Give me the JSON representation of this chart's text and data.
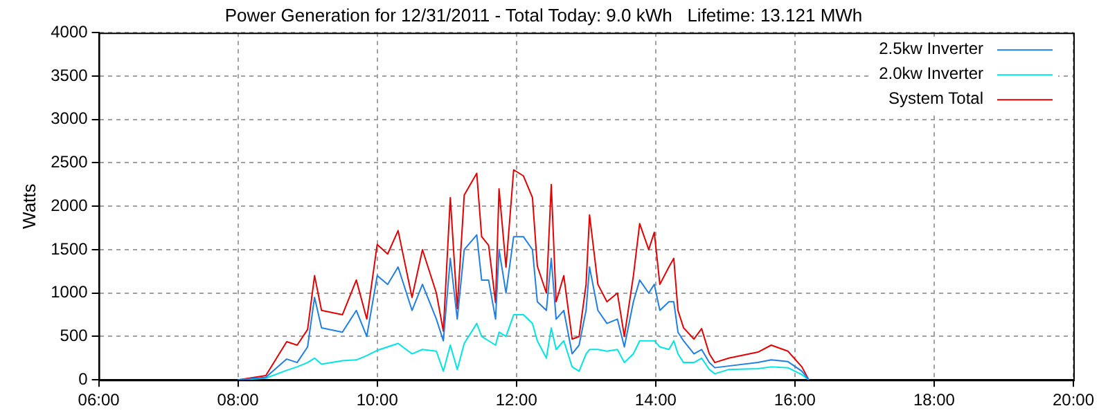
{
  "chart_data": {
    "type": "line",
    "title": "Power Generation for 12/31/2011 - Total Today: 9.0 kWh   Lifetime: 13.121 MWh",
    "ylabel": "Watts",
    "x": [
      8.0,
      8.4,
      8.7,
      8.85,
      9.0,
      9.1,
      9.2,
      9.5,
      9.7,
      9.85,
      10.0,
      10.15,
      10.3,
      10.5,
      10.65,
      10.85,
      10.95,
      11.05,
      11.15,
      11.25,
      11.43,
      11.5,
      11.6,
      11.7,
      11.75,
      11.85,
      11.96,
      12.1,
      12.23,
      12.3,
      12.43,
      12.5,
      12.57,
      12.68,
      12.8,
      12.9,
      13.0,
      13.05,
      13.17,
      13.3,
      13.45,
      13.55,
      13.68,
      13.77,
      13.9,
      13.98,
      14.06,
      14.19,
      14.26,
      14.32,
      14.4,
      14.55,
      14.66,
      14.77,
      14.85,
      15.05,
      15.47,
      15.66,
      15.9,
      16.1,
      16.2
    ],
    "series": [
      {
        "name": "2.5kw Inverter",
        "color": "#1e7fe6",
        "values": [
          0,
          30,
          240,
          200,
          380,
          950,
          600,
          550,
          800,
          500,
          1200,
          1100,
          1300,
          800,
          1100,
          700,
          450,
          1400,
          700,
          1500,
          1670,
          1150,
          1150,
          700,
          1500,
          1000,
          1650,
          1650,
          1500,
          900,
          800,
          1400,
          700,
          800,
          300,
          400,
          800,
          1300,
          800,
          650,
          700,
          380,
          900,
          1150,
          1000,
          1100,
          800,
          900,
          900,
          550,
          450,
          300,
          350,
          200,
          140,
          160,
          200,
          230,
          210,
          100,
          0
        ]
      },
      {
        "name": "2.0kw Inverter",
        "color": "#00e5e5",
        "values": [
          0,
          20,
          110,
          150,
          200,
          250,
          180,
          220,
          230,
          280,
          340,
          380,
          420,
          300,
          350,
          330,
          100,
          400,
          120,
          420,
          650,
          500,
          450,
          400,
          550,
          500,
          750,
          750,
          650,
          450,
          250,
          600,
          350,
          450,
          150,
          100,
          300,
          350,
          350,
          330,
          350,
          200,
          300,
          450,
          450,
          450,
          380,
          350,
          450,
          300,
          200,
          200,
          250,
          120,
          70,
          120,
          130,
          150,
          140,
          60,
          0
        ]
      },
      {
        "name": "System Total",
        "color": "#e60000",
        "values": [
          0,
          50,
          440,
          400,
          580,
          1200,
          800,
          750,
          1150,
          700,
          1560,
          1450,
          1720,
          950,
          1500,
          1000,
          560,
          2100,
          820,
          2130,
          2380,
          1650,
          1550,
          890,
          2200,
          1300,
          2420,
          2350,
          2100,
          1310,
          1000,
          2250,
          900,
          1200,
          470,
          500,
          1100,
          1900,
          1100,
          900,
          1000,
          500,
          1200,
          1800,
          1500,
          1700,
          1100,
          1300,
          1400,
          800,
          600,
          470,
          590,
          300,
          200,
          250,
          320,
          400,
          330,
          150,
          0
        ]
      }
    ],
    "xlim": [
      6,
      20
    ],
    "xticks": [
      {
        "value": 6,
        "label": "06:00"
      },
      {
        "value": 8,
        "label": "08:00"
      },
      {
        "value": 10,
        "label": "10:00"
      },
      {
        "value": 12,
        "label": "12:00"
      },
      {
        "value": 14,
        "label": "14:00"
      },
      {
        "value": 16,
        "label": "16:00"
      },
      {
        "value": 18,
        "label": "18:00"
      },
      {
        "value": 20,
        "label": "20:00"
      }
    ],
    "ylim": [
      0,
      4000
    ],
    "yticks": [
      0,
      500,
      1000,
      1500,
      2000,
      2500,
      3000,
      3500,
      4000
    ],
    "grid": true,
    "legend": "top right",
    "marker": "none",
    "line_style": "solid"
  }
}
